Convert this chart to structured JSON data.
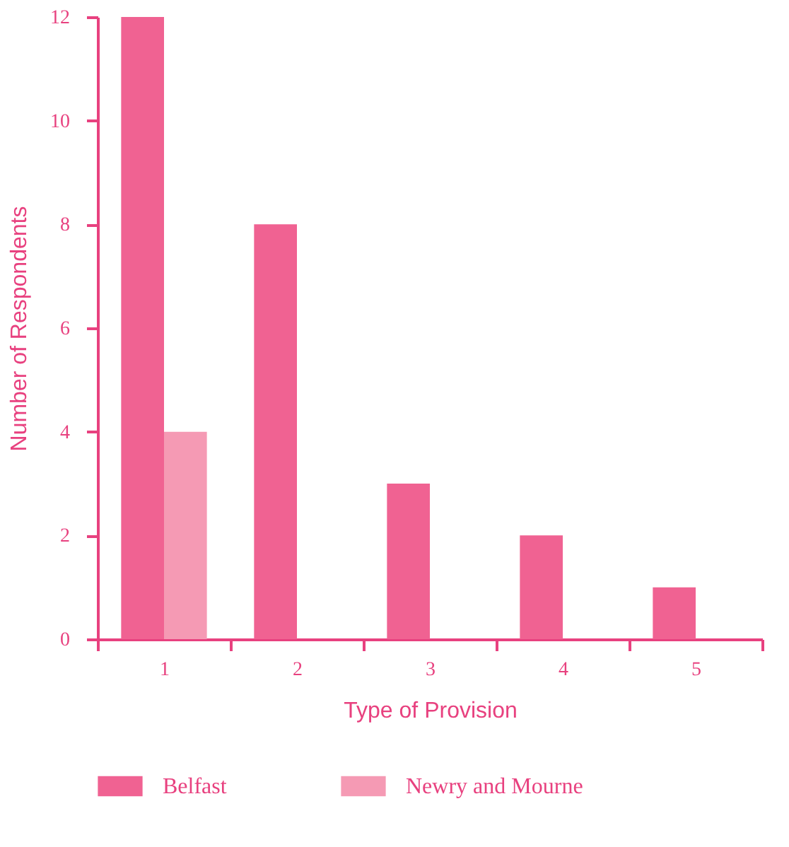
{
  "chart_data": {
    "type": "bar",
    "xlabel": "Type of Provision",
    "ylabel": "Number of Respondents",
    "categories": [
      "1",
      "2",
      "3",
      "4",
      "5"
    ],
    "series": [
      {
        "name": "Belfast",
        "color": "#f06292",
        "values": [
          12,
          8,
          3,
          2,
          1
        ]
      },
      {
        "name": "Newry and Mourne",
        "color": "#f59ab4",
        "values": [
          4,
          0,
          0,
          0,
          0
        ]
      }
    ],
    "ylim": [
      0,
      12
    ],
    "yticks": [
      0,
      2,
      4,
      6,
      8,
      10,
      12
    ],
    "grid": false,
    "legend": "bottom"
  }
}
